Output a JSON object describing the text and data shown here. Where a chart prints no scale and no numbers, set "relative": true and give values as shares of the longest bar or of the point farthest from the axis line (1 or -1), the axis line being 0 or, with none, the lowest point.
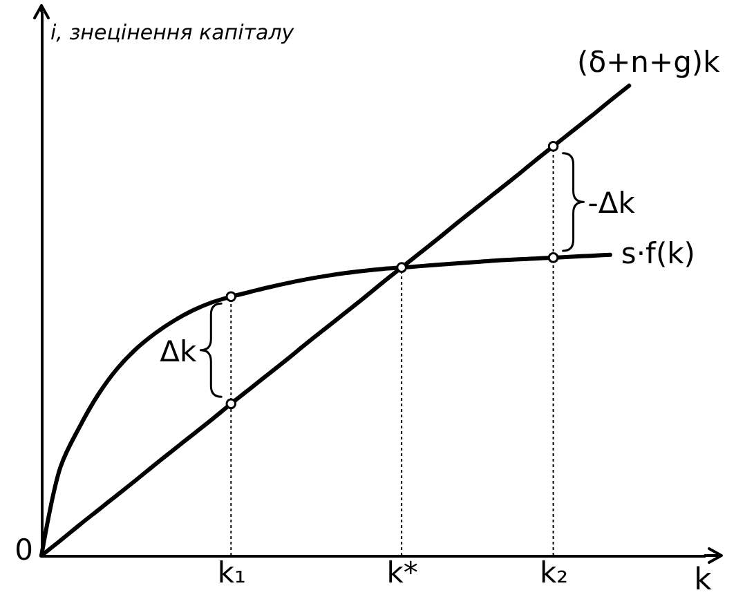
{
  "chart_data": {
    "type": "line",
    "xlabel": "k",
    "ylabel": "i, знецінення капіталу",
    "relative": true,
    "categories": [
      null,
      null,
      null,
      null,
      null,
      null,
      null,
      null,
      null,
      null,
      "k₁",
      null,
      null,
      null,
      null,
      null,
      null,
      null,
      null,
      "k*",
      null,
      null,
      null,
      null,
      null,
      null,
      null,
      "k₂",
      null,
      null,
      null,
      null,
      null,
      null,
      null,
      null
    ],
    "series": [
      {
        "name": "s·f(k)",
        "color": "#000000",
        "values": [
          0,
          0.188,
          0.273,
          0.343,
          0.398,
          0.44,
          0.473,
          0.5,
          0.522,
          0.539,
          0.551,
          0.561,
          0.571,
          0.58,
          0.588,
          0.595,
          0.601,
          0.606,
          0.61,
          0.613,
          0.616,
          0.619,
          0.622,
          0.625,
          0.628,
          0.63,
          0.632,
          0.634,
          0.636,
          0.638,
          0.64,
          null,
          null,
          null,
          null,
          null
        ]
      },
      {
        "name": "(δ+n+g)k",
        "color": "#000000",
        "values": [
          0,
          0.032,
          0.065,
          0.097,
          0.129,
          0.161,
          0.194,
          0.226,
          0.258,
          0.29,
          0.323,
          0.355,
          0.387,
          0.419,
          0.452,
          0.484,
          0.516,
          0.548,
          0.581,
          0.613,
          0.645,
          0.677,
          0.71,
          0.742,
          0.774,
          0.806,
          0.839,
          0.871,
          0.903,
          0.935,
          0.968,
          1,
          null,
          null,
          null,
          null
        ]
      },
      {
        "type": "lollipop",
        "color": "#000000",
        "marker": "circle",
        "line_style": "dotted",
        "x": [
          "k₁",
          "k*",
          "k₂"
        ],
        "values": [
          0.551,
          0.613,
          0.871
        ]
      },
      {
        "type": "scatter",
        "color": "#000000",
        "marker": "circle",
        "x": [
          "k₁",
          "k₂"
        ],
        "values": [
          0.323,
          0.634
        ]
      }
    ],
    "annotations": [
      "0",
      "Δk",
      "-Δk"
    ]
  }
}
